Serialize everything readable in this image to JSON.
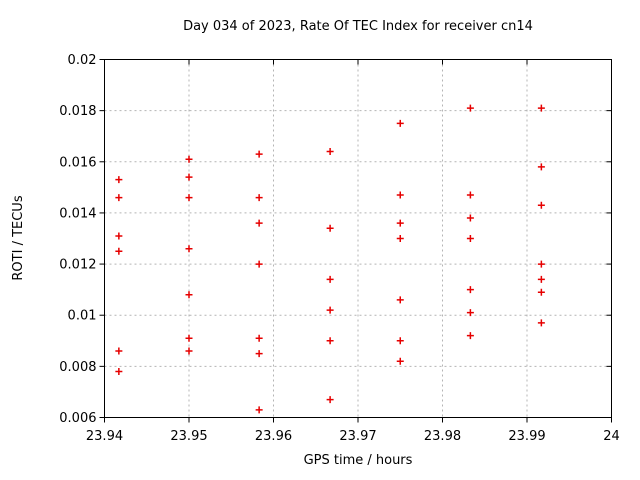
{
  "chart_data": {
    "type": "scatter",
    "title": "Day 034 of 2023, Rate Of TEC Index for receiver cn14",
    "xlabel": "GPS time / hours",
    "ylabel": "ROTI / TECUs",
    "xlim": [
      23.94,
      24
    ],
    "ylim": [
      0.006,
      0.02
    ],
    "x_ticks": [
      23.94,
      23.95,
      23.96,
      23.97,
      23.98,
      23.99,
      24
    ],
    "x_tick_labels": [
      "23.94",
      "23.95",
      "23.96",
      "23.97",
      "23.98",
      "23.99",
      "24"
    ],
    "y_ticks": [
      0.006,
      0.008,
      0.01,
      0.012,
      0.014,
      0.016,
      0.018,
      0.02
    ],
    "y_tick_labels": [
      "0.006",
      "0.008",
      "0.01",
      "0.012",
      "0.014",
      "0.016",
      "0.018",
      "0.02"
    ],
    "grid": true,
    "legend": "none",
    "marker": "plus",
    "marker_color": "#e60000",
    "grid_color": "#b4b4b4",
    "axis_color": "#000000",
    "series": [
      {
        "name": "ROTI",
        "points": [
          [
            23.9417,
            0.0153
          ],
          [
            23.9417,
            0.0146
          ],
          [
            23.9417,
            0.0131
          ],
          [
            23.9417,
            0.0125
          ],
          [
            23.9417,
            0.0086
          ],
          [
            23.9417,
            0.0078
          ],
          [
            23.95,
            0.0161
          ],
          [
            23.95,
            0.0154
          ],
          [
            23.95,
            0.0146
          ],
          [
            23.95,
            0.0126
          ],
          [
            23.95,
            0.0108
          ],
          [
            23.95,
            0.0091
          ],
          [
            23.95,
            0.0086
          ],
          [
            23.9583,
            0.0163
          ],
          [
            23.9583,
            0.0146
          ],
          [
            23.9583,
            0.0136
          ],
          [
            23.9583,
            0.012
          ],
          [
            23.9583,
            0.0091
          ],
          [
            23.9583,
            0.0085
          ],
          [
            23.9583,
            0.0063
          ],
          [
            23.9667,
            0.0164
          ],
          [
            23.9667,
            0.0134
          ],
          [
            23.9667,
            0.0114
          ],
          [
            23.9667,
            0.0102
          ],
          [
            23.9667,
            0.009
          ],
          [
            23.9667,
            0.0067
          ],
          [
            23.975,
            0.0175
          ],
          [
            23.975,
            0.0147
          ],
          [
            23.975,
            0.0136
          ],
          [
            23.975,
            0.013
          ],
          [
            23.975,
            0.0106
          ],
          [
            23.975,
            0.009
          ],
          [
            23.975,
            0.0082
          ],
          [
            23.9833,
            0.0181
          ],
          [
            23.9833,
            0.0147
          ],
          [
            23.9833,
            0.0138
          ],
          [
            23.9833,
            0.013
          ],
          [
            23.9833,
            0.011
          ],
          [
            23.9833,
            0.0101
          ],
          [
            23.9833,
            0.0092
          ],
          [
            23.9917,
            0.0181
          ],
          [
            23.9917,
            0.0158
          ],
          [
            23.9917,
            0.0143
          ],
          [
            23.9917,
            0.012
          ],
          [
            23.9917,
            0.0114
          ],
          [
            23.9917,
            0.0109
          ],
          [
            23.9917,
            0.0097
          ]
        ]
      }
    ]
  }
}
